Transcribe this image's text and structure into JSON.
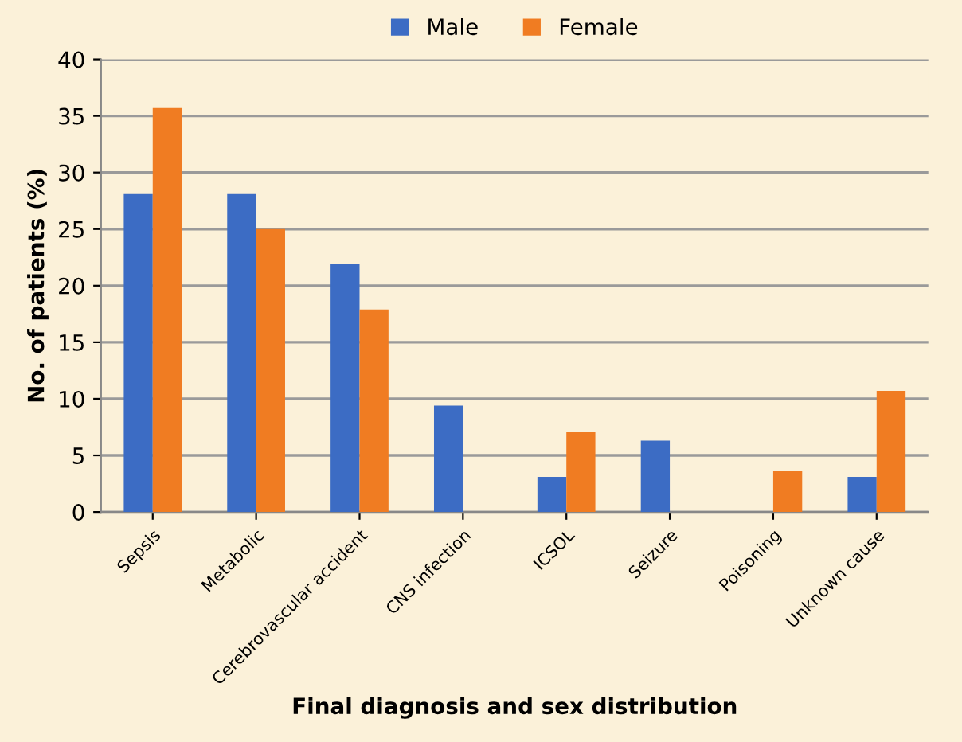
{
  "chart_data": {
    "type": "bar",
    "xlabel": "Final diagnosis and sex distribution",
    "ylabel": "No. of patients (%)",
    "categories": [
      "Sepsis",
      "Metabolic",
      "Cerebrovascular accident",
      "CNS infection",
      "ICSOL",
      "Seizure",
      "Poisoning",
      "Unknown cause"
    ],
    "series": [
      {
        "name": "Male",
        "color": "#3c6cc4",
        "values": [
          28.1,
          28.1,
          21.9,
          9.4,
          3.1,
          6.3,
          0,
          3.1
        ]
      },
      {
        "name": "Female",
        "color": "#f07c22",
        "values": [
          35.7,
          25,
          17.9,
          0,
          7.1,
          0,
          3.6,
          10.7
        ]
      }
    ],
    "ylim": [
      0,
      40
    ],
    "yticks": [
      0,
      5,
      10,
      15,
      20,
      25,
      30,
      35,
      40
    ],
    "grid": "y",
    "legend": "top"
  }
}
